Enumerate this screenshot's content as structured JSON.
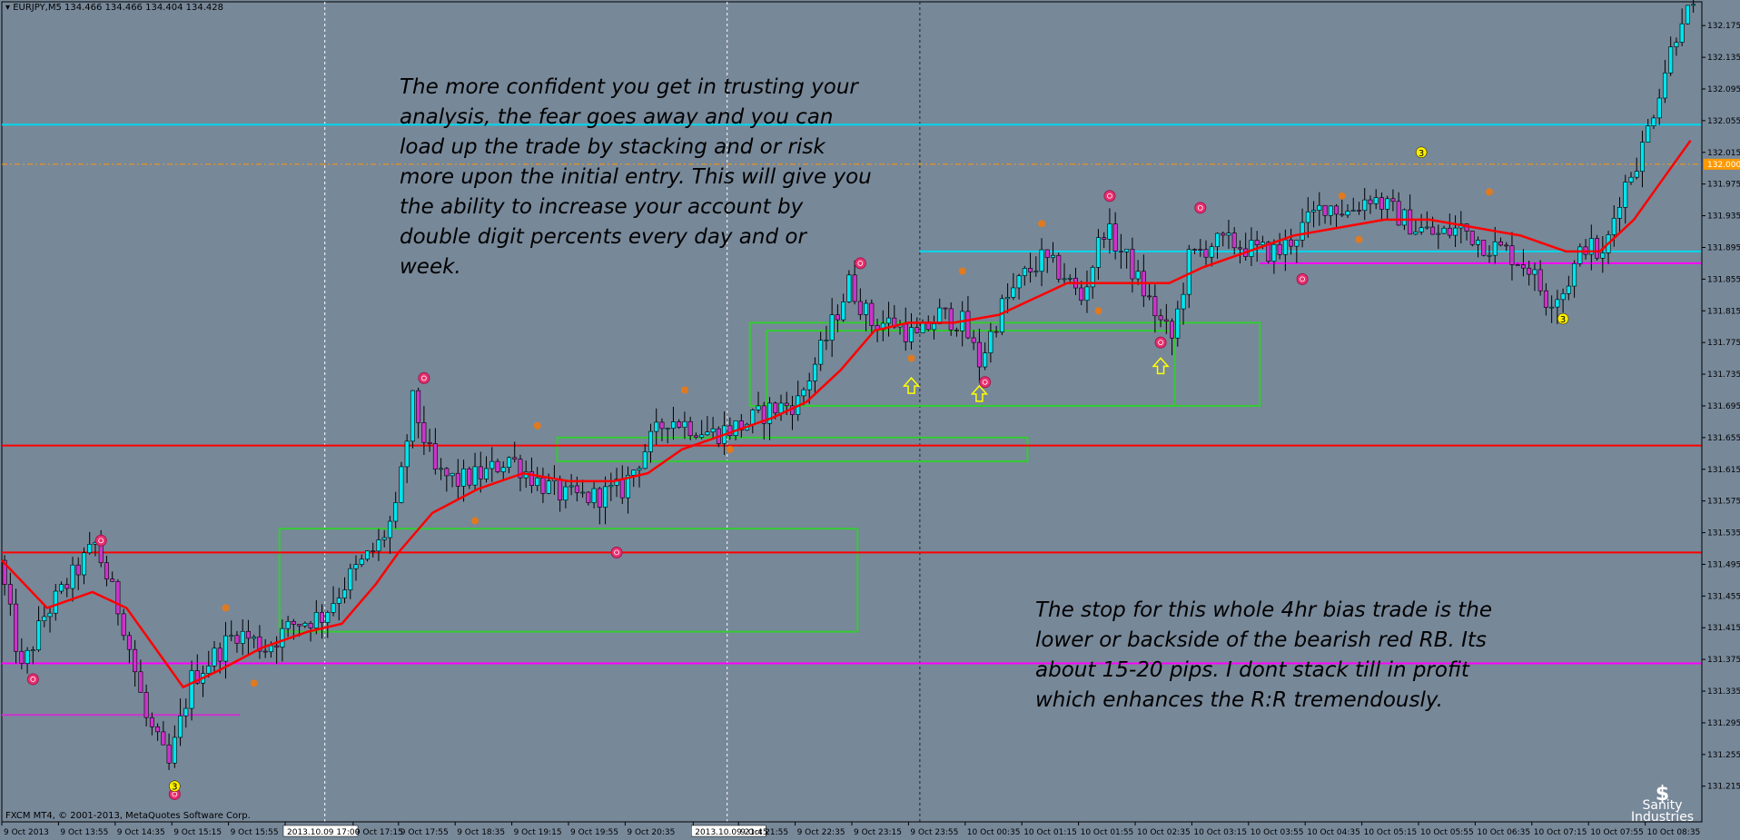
{
  "header": {
    "symbol": "EURJPY,M5",
    "ohlc": "134.466 134.466 134.404 134.428"
  },
  "footer": {
    "copyright": "FXCM MT4, © 2001-2013, MetaQuotes Software Corp."
  },
  "notes": {
    "note_1": "The more confident you get in trusting your\nanalysis, the fear goes away and you can\nload up the trade by stacking and or risk\nmore upon the initial entry. This will give you\nthe ability to increase your account by\ndouble digit percents every day and or week.",
    "note_2": "The stop for this whole 4hr bias trade is the\nlower or backside of the bearish red RB. Its\nabout 15-20 pips. I dont stack till in profit\nwhich enhances the R:R tremendously."
  },
  "logo": {
    "line_1": "Sanity",
    "line_2": "Industries",
    "symbol": "$"
  },
  "colors": {
    "background": "#778899",
    "bull_candle": "#00e5ee",
    "bear_candle": "#cc33cc",
    "moving_average": "#ff0000",
    "zone_box": "#33cc33",
    "level_cyan": "#00d7ee",
    "level_red": "#ff0000",
    "level_magenta": "#ff00ff",
    "level_orange_dashed": "#ff9900",
    "marker_pink": "#e8306f",
    "marker_orange": "#e07a20",
    "marker_yellow": "#ffee00",
    "arrow_yellow": "#ffff00"
  },
  "chart_data": {
    "type": "candlestick",
    "y_range": [
      131.17,
      132.205
    ],
    "x_range": [
      0,
      300
    ],
    "y_ticks": [
      "132.175",
      "132.135",
      "132.095",
      "132.055",
      "132.015",
      "131.975",
      "131.935",
      "131.895",
      "131.855",
      "131.815",
      "131.775",
      "131.735",
      "131.695",
      "131.655",
      "131.615",
      "131.575",
      "131.535",
      "131.495",
      "131.455",
      "131.415",
      "131.375",
      "131.335",
      "131.295",
      "131.255",
      "131.215"
    ],
    "price_label": "132.000",
    "x_ticks": [
      {
        "i": 0,
        "label": "9 Oct 2013"
      },
      {
        "i": 10,
        "label": "9 Oct 13:55"
      },
      {
        "i": 20,
        "label": "9 Oct 14:35"
      },
      {
        "i": 30,
        "label": "9 Oct 15:15"
      },
      {
        "i": 40,
        "label": "9 Oct 15:55"
      },
      {
        "i": 50,
        "label": "2013.10.09 17:00",
        "boxed": true
      },
      {
        "i": 62,
        "label": "9 Oct 17:15"
      },
      {
        "i": 70,
        "label": "9 Oct 17:55"
      },
      {
        "i": 80,
        "label": "9 Oct 18:35"
      },
      {
        "i": 90,
        "label": "9 Oct 19:15"
      },
      {
        "i": 100,
        "label": "9 Oct 19:55"
      },
      {
        "i": 110,
        "label": "9 Oct 20:35"
      },
      {
        "i": 122,
        "label": "2013.10.09 21:45",
        "boxed": true
      },
      {
        "i": 130,
        "label": "9 Oct 21:55"
      },
      {
        "i": 140,
        "label": "9 Oct 22:35"
      },
      {
        "i": 150,
        "label": "9 Oct 23:15"
      },
      {
        "i": 160,
        "label": "9 Oct 23:55"
      },
      {
        "i": 170,
        "label": "10 Oct 00:35"
      },
      {
        "i": 180,
        "label": "10 Oct 01:15"
      },
      {
        "i": 190,
        "label": "10 Oct 01:55"
      },
      {
        "i": 200,
        "label": "10 Oct 02:35"
      },
      {
        "i": 210,
        "label": "10 Oct 03:15"
      },
      {
        "i": 220,
        "label": "10 Oct 03:55"
      },
      {
        "i": 230,
        "label": "10 Oct 04:35"
      },
      {
        "i": 240,
        "label": "10 Oct 05:15"
      },
      {
        "i": 250,
        "label": "10 Oct 05:55"
      },
      {
        "i": 260,
        "label": "10 Oct 06:35"
      },
      {
        "i": 270,
        "label": "10 Oct 07:15"
      },
      {
        "i": 280,
        "label": "10 Oct 07:55"
      },
      {
        "i": 290,
        "label": "10 Oct 08:35"
      }
    ],
    "levels": [
      {
        "price": 132.05,
        "color": "#00d7ee",
        "x0": 0,
        "x1": 300
      },
      {
        "price": 132.0,
        "color": "#ff9900",
        "x0": 0,
        "x1": 300,
        "dashed": true
      },
      {
        "price": 131.89,
        "color": "#00d7ee",
        "x0": 162,
        "x1": 300
      },
      {
        "price": 131.875,
        "color": "#ff00ff",
        "x0": 222,
        "x1": 300
      },
      {
        "price": 131.645,
        "color": "#ff0000",
        "x0": 0,
        "x1": 300
      },
      {
        "price": 131.51,
        "color": "#ff0000",
        "x0": 0,
        "x1": 300
      },
      {
        "price": 131.37,
        "color": "#ff00ff",
        "x0": 0,
        "x1": 300
      },
      {
        "price": 131.305,
        "color": "#cc33cc",
        "x0": 0,
        "x1": 42
      }
    ],
    "zones": [
      {
        "x0": 49,
        "x1": 151,
        "top": 131.54,
        "bottom": 131.41
      },
      {
        "x0": 98,
        "x1": 181,
        "top": 131.655,
        "bottom": 131.625
      },
      {
        "x0": 132,
        "x1": 222,
        "top": 131.8,
        "bottom": 131.695
      },
      {
        "x0": 135,
        "x1": 207,
        "top": 131.79,
        "bottom": 131.695
      }
    ],
    "vlines": [
      {
        "i": 57,
        "style": "white-dashed"
      },
      {
        "i": 128,
        "style": "white-dashed"
      },
      {
        "i": 162,
        "style": "black-dashed"
      }
    ],
    "anchors": [
      [
        0,
        131.5
      ],
      [
        4,
        131.36
      ],
      [
        8,
        131.43
      ],
      [
        12,
        131.47
      ],
      [
        17,
        131.52
      ],
      [
        22,
        131.42
      ],
      [
        26,
        131.3
      ],
      [
        30,
        131.24
      ],
      [
        34,
        131.35
      ],
      [
        38,
        131.38
      ],
      [
        42,
        131.41
      ],
      [
        47,
        131.39
      ],
      [
        52,
        131.42
      ],
      [
        57,
        131.43
      ],
      [
        62,
        131.48
      ],
      [
        67,
        131.52
      ],
      [
        70,
        131.56
      ],
      [
        73,
        131.7
      ],
      [
        77,
        131.61
      ],
      [
        81,
        131.6
      ],
      [
        86,
        131.61
      ],
      [
        90,
        131.63
      ],
      [
        95,
        131.6
      ],
      [
        100,
        131.58
      ],
      [
        105,
        131.58
      ],
      [
        110,
        131.59
      ],
      [
        114,
        131.64
      ],
      [
        118,
        131.68
      ],
      [
        122,
        131.67
      ],
      [
        126,
        131.66
      ],
      [
        131,
        131.67
      ],
      [
        136,
        131.69
      ],
      [
        141,
        131.7
      ],
      [
        146,
        131.78
      ],
      [
        150,
        131.85
      ],
      [
        154,
        131.8
      ],
      [
        158,
        131.8
      ],
      [
        162,
        131.78
      ],
      [
        166,
        131.81
      ],
      [
        170,
        131.8
      ],
      [
        173,
        131.75
      ],
      [
        177,
        131.82
      ],
      [
        181,
        131.86
      ],
      [
        184,
        131.88
      ],
      [
        188,
        131.86
      ],
      [
        191,
        131.83
      ],
      [
        195,
        131.92
      ],
      [
        199,
        131.88
      ],
      [
        202,
        131.84
      ],
      [
        205,
        131.8
      ],
      [
        207,
        131.78
      ],
      [
        210,
        131.88
      ],
      [
        214,
        131.9
      ],
      [
        218,
        131.9
      ],
      [
        222,
        131.89
      ],
      [
        226,
        131.89
      ],
      [
        230,
        131.92
      ],
      [
        234,
        131.95
      ],
      [
        238,
        131.94
      ],
      [
        242,
        131.96
      ],
      [
        246,
        131.94
      ],
      [
        250,
        131.92
      ],
      [
        254,
        131.91
      ],
      [
        258,
        131.92
      ],
      [
        262,
        131.9
      ],
      [
        266,
        131.89
      ],
      [
        270,
        131.87
      ],
      [
        273,
        131.83
      ],
      [
        276,
        131.84
      ],
      [
        280,
        131.9
      ],
      [
        283,
        131.88
      ],
      [
        286,
        131.96
      ],
      [
        290,
        132.02
      ],
      [
        294,
        132.12
      ],
      [
        297,
        132.19
      ]
    ],
    "moving_average": [
      [
        0,
        131.5
      ],
      [
        8,
        131.44
      ],
      [
        16,
        131.46
      ],
      [
        22,
        131.44
      ],
      [
        28,
        131.38
      ],
      [
        32,
        131.34
      ],
      [
        38,
        131.36
      ],
      [
        46,
        131.39
      ],
      [
        54,
        131.41
      ],
      [
        60,
        131.42
      ],
      [
        66,
        131.47
      ],
      [
        70,
        131.51
      ],
      [
        76,
        131.56
      ],
      [
        84,
        131.59
      ],
      [
        92,
        131.61
      ],
      [
        100,
        131.6
      ],
      [
        108,
        131.6
      ],
      [
        114,
        131.61
      ],
      [
        120,
        131.64
      ],
      [
        128,
        131.66
      ],
      [
        136,
        131.68
      ],
      [
        142,
        131.7
      ],
      [
        148,
        131.74
      ],
      [
        154,
        131.79
      ],
      [
        160,
        131.8
      ],
      [
        168,
        131.8
      ],
      [
        176,
        131.81
      ],
      [
        182,
        131.83
      ],
      [
        188,
        131.85
      ],
      [
        194,
        131.85
      ],
      [
        200,
        131.85
      ],
      [
        206,
        131.85
      ],
      [
        212,
        131.87
      ],
      [
        220,
        131.89
      ],
      [
        228,
        131.91
      ],
      [
        236,
        131.92
      ],
      [
        244,
        131.93
      ],
      [
        252,
        131.93
      ],
      [
        260,
        131.92
      ],
      [
        268,
        131.91
      ],
      [
        276,
        131.89
      ],
      [
        282,
        131.89
      ],
      [
        288,
        131.93
      ],
      [
        294,
        131.99
      ],
      [
        298,
        132.03
      ]
    ],
    "markers": [
      {
        "i": 5,
        "price": 131.35,
        "kind": "pink"
      },
      {
        "i": 17,
        "price": 131.525,
        "kind": "pink"
      },
      {
        "i": 30,
        "price": 131.205,
        "kind": "pink"
      },
      {
        "i": 30,
        "price": 131.215,
        "kind": "yellow-num",
        "label": "3"
      },
      {
        "i": 39,
        "price": 131.44,
        "kind": "orange"
      },
      {
        "i": 44,
        "price": 131.345,
        "kind": "orange"
      },
      {
        "i": 74,
        "price": 131.73,
        "kind": "pink"
      },
      {
        "i": 83,
        "price": 131.55,
        "kind": "orange"
      },
      {
        "i": 94,
        "price": 131.67,
        "kind": "orange"
      },
      {
        "i": 108,
        "price": 131.51,
        "kind": "pink"
      },
      {
        "i": 120,
        "price": 131.715,
        "kind": "orange"
      },
      {
        "i": 128,
        "price": 131.64,
        "kind": "orange"
      },
      {
        "i": 151,
        "price": 131.875,
        "kind": "pink"
      },
      {
        "i": 160,
        "price": 131.755,
        "kind": "orange"
      },
      {
        "i": 169,
        "price": 131.865,
        "kind": "orange"
      },
      {
        "i": 173,
        "price": 131.725,
        "kind": "pink"
      },
      {
        "i": 183,
        "price": 131.925,
        "kind": "orange"
      },
      {
        "i": 193,
        "price": 131.815,
        "kind": "orange"
      },
      {
        "i": 195,
        "price": 131.96,
        "kind": "pink"
      },
      {
        "i": 204,
        "price": 131.775,
        "kind": "pink"
      },
      {
        "i": 211,
        "price": 131.945,
        "kind": "pink"
      },
      {
        "i": 229,
        "price": 131.855,
        "kind": "pink"
      },
      {
        "i": 236,
        "price": 131.96,
        "kind": "orange"
      },
      {
        "i": 239,
        "price": 131.905,
        "kind": "orange"
      },
      {
        "i": 250,
        "price": 132.015,
        "kind": "yellow-num",
        "label": "3"
      },
      {
        "i": 262,
        "price": 131.965,
        "kind": "orange"
      },
      {
        "i": 275,
        "price": 131.805,
        "kind": "yellow-num",
        "label": "3"
      }
    ],
    "arrows": [
      {
        "i": 160,
        "price": 131.72
      },
      {
        "i": 172,
        "price": 131.71
      },
      {
        "i": 204,
        "price": 131.745
      }
    ]
  }
}
